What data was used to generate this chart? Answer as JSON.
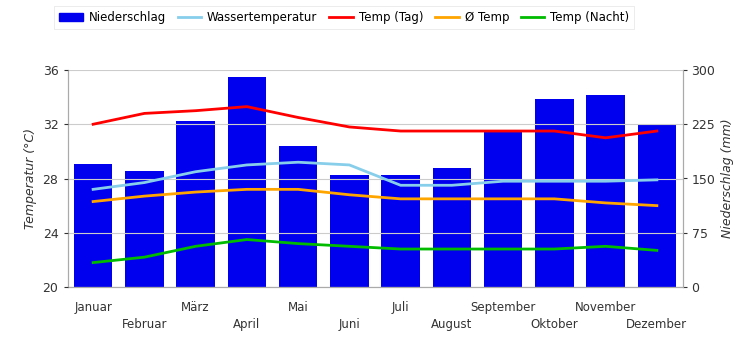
{
  "months": [
    "Januar",
    "Februar",
    "März",
    "April",
    "Mai",
    "Juni",
    "Juli",
    "August",
    "September",
    "Oktober",
    "November",
    "Dezember"
  ],
  "niederschlag_mm": [
    170,
    160,
    230,
    290,
    195,
    155,
    155,
    165,
    215,
    260,
    265,
    225
  ],
  "temp_tag": [
    32.0,
    32.8,
    33.0,
    33.3,
    32.5,
    31.8,
    31.5,
    31.5,
    31.5,
    31.5,
    31.0,
    31.5
  ],
  "wassertemperatur": [
    27.2,
    27.7,
    28.5,
    29.0,
    29.2,
    29.0,
    27.5,
    27.5,
    27.8,
    27.8,
    27.8,
    27.9
  ],
  "avg_temp": [
    26.3,
    26.7,
    27.0,
    27.2,
    27.2,
    26.8,
    26.5,
    26.5,
    26.5,
    26.5,
    26.2,
    26.0
  ],
  "temp_nacht": [
    21.8,
    22.2,
    23.0,
    23.5,
    23.2,
    23.0,
    22.8,
    22.8,
    22.8,
    22.8,
    23.0,
    22.7
  ],
  "temp_ylim": [
    20,
    36
  ],
  "precip_ylim": [
    0,
    300
  ],
  "temp_yticks": [
    20,
    24,
    28,
    32,
    36
  ],
  "precip_yticks": [
    0,
    75,
    150,
    225,
    300
  ],
  "bar_color": "#0000EE",
  "line_color_tag": "#FF0000",
  "line_color_wasser": "#87CEEB",
  "line_color_avg": "#FFA500",
  "line_color_nacht": "#00BB00",
  "legend_labels": [
    "Niederschlag",
    "Wassertemperatur",
    "Temp (Tag)",
    "Ø Temp",
    "Temp (Nacht)"
  ],
  "ylabel_left": "Temperatur (°C)",
  "ylabel_right": "Niederschlag (mm)",
  "figsize": [
    7.5,
    3.5
  ],
  "dpi": 100
}
